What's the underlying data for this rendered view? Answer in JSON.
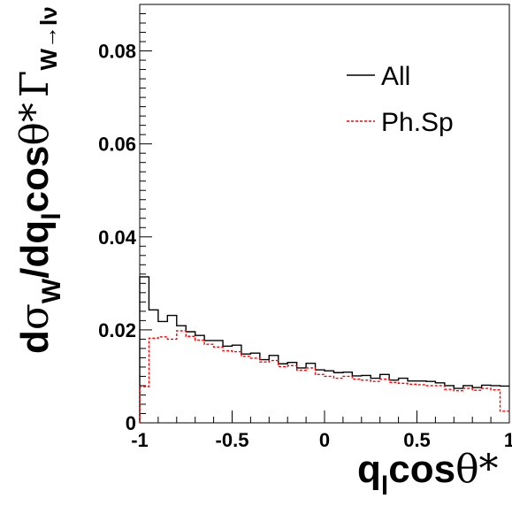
{
  "chart_data": {
    "type": "line",
    "title": "",
    "xlabel": "q_l cos θ*",
    "ylabel": "dσ_W/dq_l cosθ* Γ_W→lν",
    "xlim": [
      -1,
      1
    ],
    "ylim": [
      0,
      0.09
    ],
    "x_ticks": [
      "-1",
      "-0.5",
      "0",
      "0.5",
      "1"
    ],
    "y_ticks": [
      "0",
      "0.02",
      "0.04",
      "0.06",
      "0.08"
    ],
    "grid": false,
    "legend_position": "top-right",
    "bin_edges": [
      -1.0,
      -0.95,
      -0.9,
      -0.85,
      -0.8,
      -0.75,
      -0.7,
      -0.65,
      -0.6,
      -0.55,
      -0.5,
      -0.45,
      -0.4,
      -0.35,
      -0.3,
      -0.25,
      -0.2,
      -0.15,
      -0.1,
      -0.05,
      0.0,
      0.05,
      0.1,
      0.15,
      0.2,
      0.25,
      0.3,
      0.35,
      0.4,
      0.45,
      0.5,
      0.55,
      0.6,
      0.65,
      0.7,
      0.75,
      0.8,
      0.85,
      0.9,
      0.95,
      1.0
    ],
    "series": [
      {
        "name": "All",
        "style": "solid",
        "color": "#000000",
        "values": [
          0.0314,
          0.0243,
          0.0218,
          0.0231,
          0.0209,
          0.0196,
          0.0188,
          0.0177,
          0.0177,
          0.0165,
          0.0167,
          0.0148,
          0.015,
          0.0136,
          0.0145,
          0.0127,
          0.013,
          0.0118,
          0.0128,
          0.0114,
          0.0112,
          0.0108,
          0.0109,
          0.0101,
          0.0102,
          0.0096,
          0.0104,
          0.0092,
          0.0096,
          0.009,
          0.009,
          0.0089,
          0.0086,
          0.008,
          0.0074,
          0.008,
          0.0076,
          0.0081,
          0.008,
          0.0079
        ]
      },
      {
        "name": "Ph.Sp",
        "style": "dashed",
        "color": "#ff0000",
        "values": [
          0.0078,
          0.0182,
          0.0185,
          0.018,
          0.0198,
          0.0186,
          0.0178,
          0.0169,
          0.0163,
          0.0155,
          0.0153,
          0.0143,
          0.0139,
          0.0131,
          0.0134,
          0.0121,
          0.0123,
          0.0113,
          0.0118,
          0.0104,
          0.01,
          0.0096,
          0.01,
          0.0094,
          0.0092,
          0.0089,
          0.0094,
          0.0087,
          0.0085,
          0.0083,
          0.0082,
          0.008,
          0.008,
          0.0072,
          0.0069,
          0.0074,
          0.007,
          0.0074,
          0.0071,
          0.0025
        ]
      }
    ]
  }
}
